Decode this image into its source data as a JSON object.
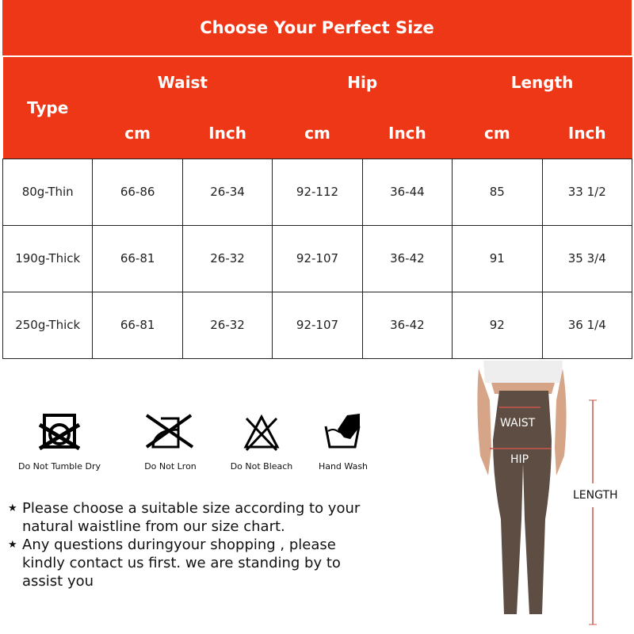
{
  "title": "Choose Your Perfect Size",
  "headers": {
    "type": "Type",
    "groups": [
      "Waist",
      "Hip",
      "Length"
    ],
    "units": [
      "cm",
      "Inch",
      "cm",
      "Inch",
      "cm",
      "Inch"
    ]
  },
  "rows": [
    [
      "80g-Thin",
      "66-86",
      "26-34",
      "92-112",
      "36-44",
      "85",
      "33 1/2"
    ],
    [
      "190g-Thick",
      "66-81",
      "26-32",
      "92-107",
      "36-42",
      "91",
      "35 3/4"
    ],
    [
      "250g-Thick",
      "66-81",
      "26-32",
      "92-107",
      "36-42",
      "92",
      "36 1/4"
    ]
  ],
  "care": [
    {
      "icon": "no-tumble-dry-icon",
      "label": "Do Not Tumble Dry"
    },
    {
      "icon": "no-iron-icon",
      "label": "Do Not Lron"
    },
    {
      "icon": "no-bleach-icon",
      "label": "Do Not Bleach"
    },
    {
      "icon": "hand-wash-icon",
      "label": "Hand Wash"
    }
  ],
  "notes": [
    "Please choose a suitable size according to your natural waistline from our size chart.",
    "Any questions duringyour shopping , please kindly contact us first. we are standing by to assist you"
  ],
  "figure": {
    "waist": "WAIST",
    "hip": "HIP",
    "length": "LENGTH"
  },
  "colors": {
    "header": "#ee3717",
    "measure": "#c9574a"
  }
}
